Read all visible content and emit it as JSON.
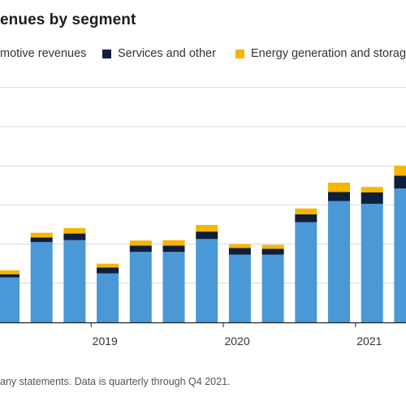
{
  "chart_data": {
    "type": "bar",
    "stacked": true,
    "title": "enues by segment",
    "legend": [
      {
        "label": "motive revenues",
        "color": "#4A98D6"
      },
      {
        "label": "Services and other",
        "color": "#0E1E3C"
      },
      {
        "label": "Energy generation and storag",
        "color": "#F7B500"
      }
    ],
    "legend_placement": "top",
    "grid": true,
    "ylim": [
      0,
      6
    ],
    "x_ticks": [
      "2019",
      "2020",
      "2021"
    ],
    "footnote": "any statements. Data is quarterly through Q4 2021.",
    "series": [
      {
        "name": "Automotive revenues",
        "color": "#4A98D6",
        "values": [
          1.15,
          2.05,
          2.1,
          1.25,
          1.8,
          1.8,
          2.13,
          1.73,
          1.73,
          2.56,
          3.1,
          3.03,
          3.42
        ]
      },
      {
        "name": "Services and other",
        "color": "#0E1E3C",
        "values": [
          0.08,
          0.12,
          0.17,
          0.15,
          0.16,
          0.16,
          0.19,
          0.17,
          0.15,
          0.2,
          0.23,
          0.29,
          0.33
        ]
      },
      {
        "name": "Energy generation and storage",
        "color": "#F7B500",
        "values": [
          0.1,
          0.12,
          0.14,
          0.1,
          0.13,
          0.14,
          0.17,
          0.1,
          0.1,
          0.15,
          0.24,
          0.14,
          0.25
        ]
      }
    ]
  }
}
